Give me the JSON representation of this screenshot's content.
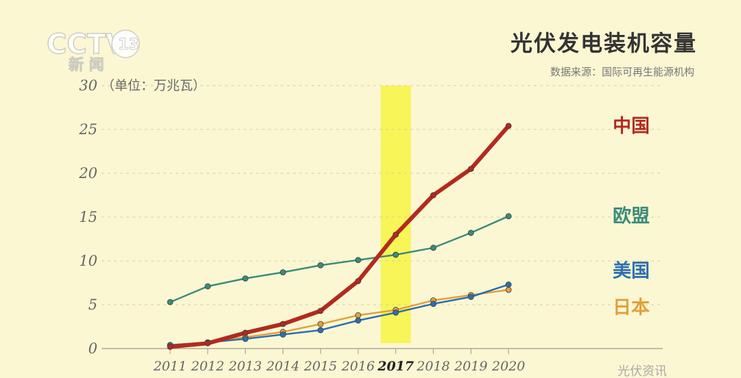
{
  "logo": {
    "main": "CCTV",
    "channel": "13",
    "sub": "新 闻"
  },
  "chart_data": {
    "type": "line",
    "title": "光伏发电装机容量",
    "source": "数据来源：国际可再生能源机构",
    "unit_label": "（单位：万兆瓦）",
    "x": [
      "2011",
      "2012",
      "2013",
      "2014",
      "2015",
      "2016",
      "2017",
      "2018",
      "2019",
      "2020"
    ],
    "highlight_x": "2017",
    "highlight_color": "#f7f558",
    "ylim": [
      0,
      30
    ],
    "yticks": [
      "0",
      "5",
      "10",
      "15",
      "20",
      "25",
      "30"
    ],
    "grid": true,
    "series": [
      {
        "name": "欧盟",
        "color": "#3b8c7c",
        "width": 2.5,
        "values": [
          5.3,
          7.1,
          8.0,
          8.7,
          9.5,
          10.1,
          10.7,
          11.5,
          13.2,
          15.1
        ]
      },
      {
        "name": "日本",
        "color": "#e2a03c",
        "width": 2.5,
        "values": [
          0.4,
          0.7,
          1.3,
          1.9,
          2.8,
          3.8,
          4.4,
          5.5,
          6.1,
          6.7
        ]
      },
      {
        "name": "美国",
        "color": "#2d6fb1",
        "width": 2.5,
        "values": [
          0.4,
          0.7,
          1.1,
          1.6,
          2.1,
          3.2,
          4.1,
          5.1,
          5.9,
          7.3
        ]
      },
      {
        "name": "中国",
        "color": "#b32a1f",
        "width": 6,
        "values": [
          0.2,
          0.6,
          1.8,
          2.8,
          4.3,
          7.7,
          13.0,
          17.5,
          20.5,
          25.4
        ]
      }
    ]
  },
  "watermark": "光伏资讯"
}
